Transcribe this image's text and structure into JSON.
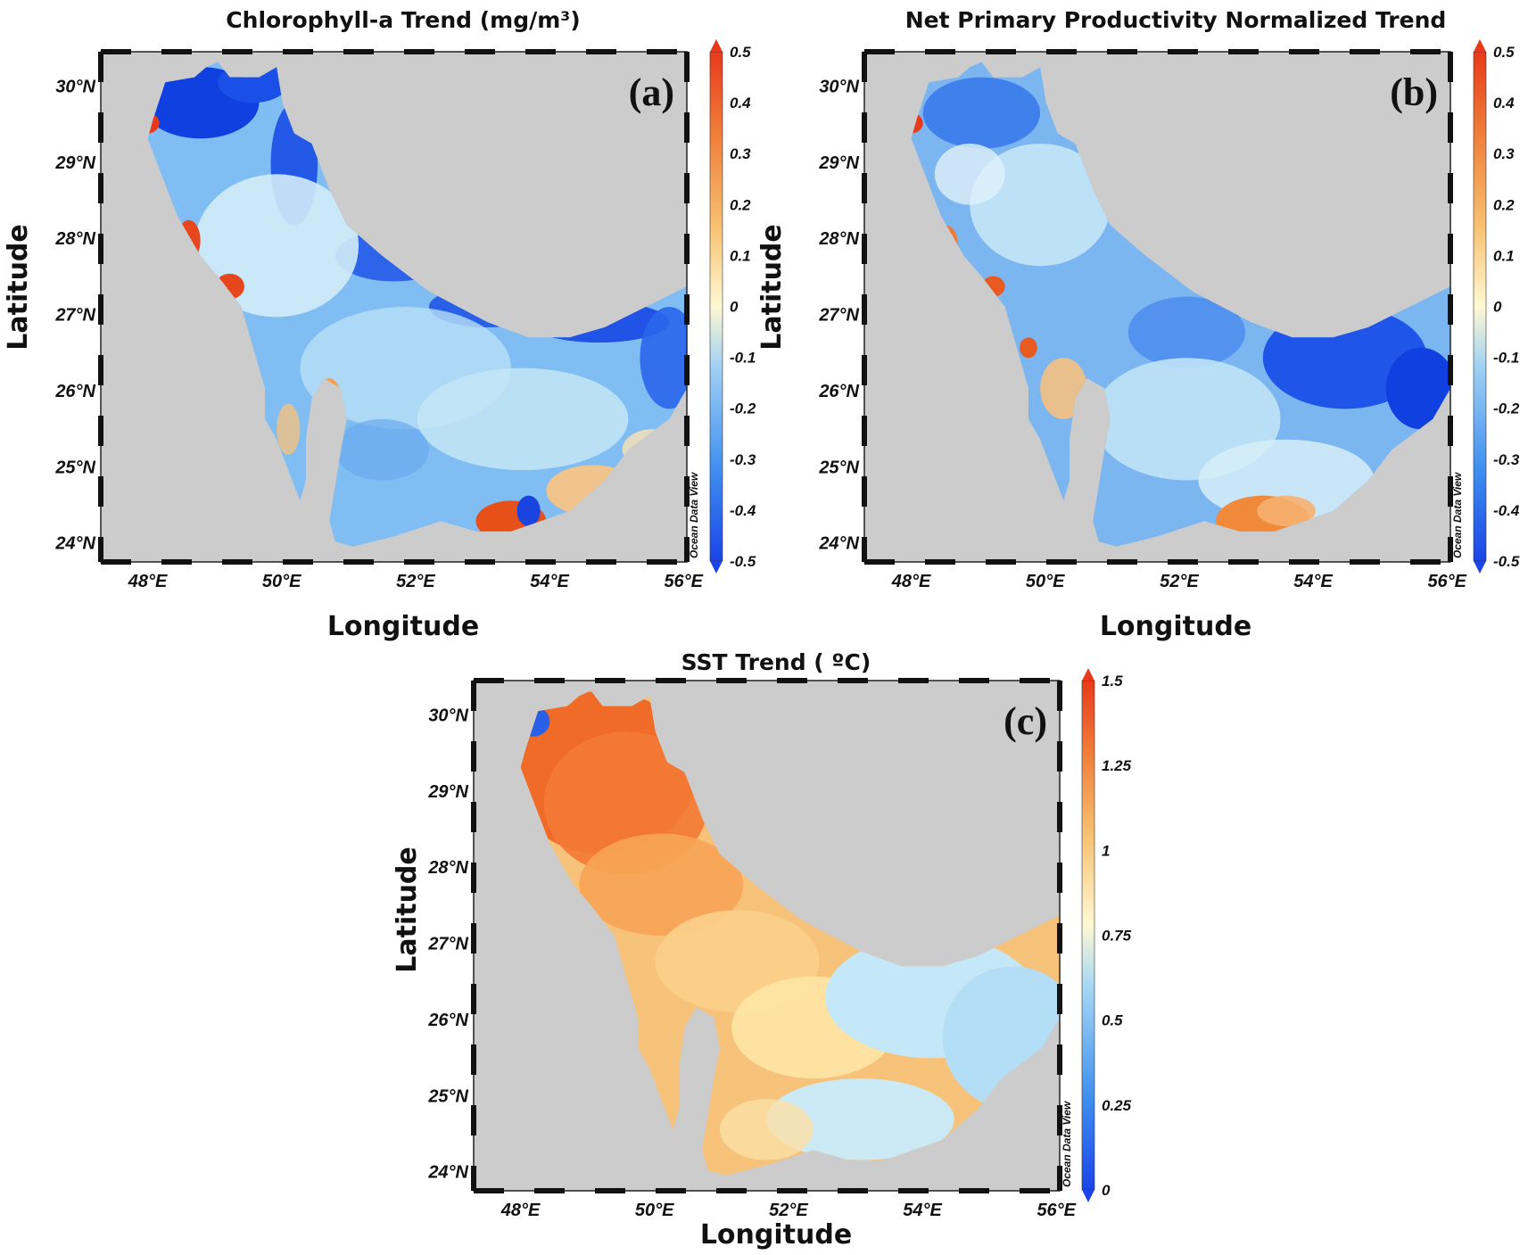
{
  "figure": {
    "panels": [
      {
        "id": "a",
        "label": "(a)",
        "title": "Chlorophyll-a Trend (mg/m³)",
        "xlabel": "Longitude",
        "ylabel": "Latitude",
        "colorbar": {
          "ticks": [
            "0.5",
            "0.4",
            "0.3",
            "0.2",
            "0.1",
            "0",
            "-0.1",
            "-0.2",
            "-0.3",
            "-0.4",
            "-0.5"
          ],
          "range": [
            -0.5,
            0.5
          ]
        },
        "watermark": "Ocean Data View",
        "colors": {
          "dominant": "#7ab8f0",
          "coast_band": "#1048e0",
          "hotspot": "#e8431a"
        }
      },
      {
        "id": "b",
        "label": "(b)",
        "title": "Net Primary Productivity Normalized Trend",
        "xlabel": "Longitude",
        "ylabel": "Latitude",
        "colorbar": {
          "ticks": [
            "0.5",
            "0.4",
            "0.3",
            "0.2",
            "0.1",
            "0",
            "-0.1",
            "-0.2",
            "-0.3",
            "-0.4",
            "-0.5"
          ],
          "range": [
            -0.5,
            0.5
          ]
        },
        "watermark": "Ocean Data View",
        "colors": {
          "dominant": "#6aa8f0",
          "east_low": "#1a5ae8",
          "hotspot": "#f08a3a"
        }
      },
      {
        "id": "c",
        "label": "(c)",
        "title": "SST Trend ( ºC)",
        "xlabel": "Longitude",
        "ylabel": "Latitude",
        "colorbar": {
          "ticks": [
            "1.5",
            "1.25",
            "1",
            "0.75",
            "0.5",
            "0.25",
            "0"
          ],
          "range": [
            0,
            1.5
          ]
        },
        "watermark": "Ocean Data View",
        "colors": {
          "north": "#f0702a",
          "middle": "#fbe3a0",
          "east": "#bfe6f5"
        }
      }
    ],
    "x_ticks": [
      "48°E",
      "50°E",
      "52°E",
      "54°E",
      "56°E"
    ],
    "y_ticks": [
      "30°N",
      "29°N",
      "28°N",
      "27°N",
      "26°N",
      "25°N",
      "24°N"
    ],
    "land_color": "#cccccc",
    "colormap": [
      "#1a44e8",
      "#3f8ff0",
      "#9fd0f4",
      "#fff8d2",
      "#f7c070",
      "#f07d3a",
      "#e83a1a"
    ]
  }
}
